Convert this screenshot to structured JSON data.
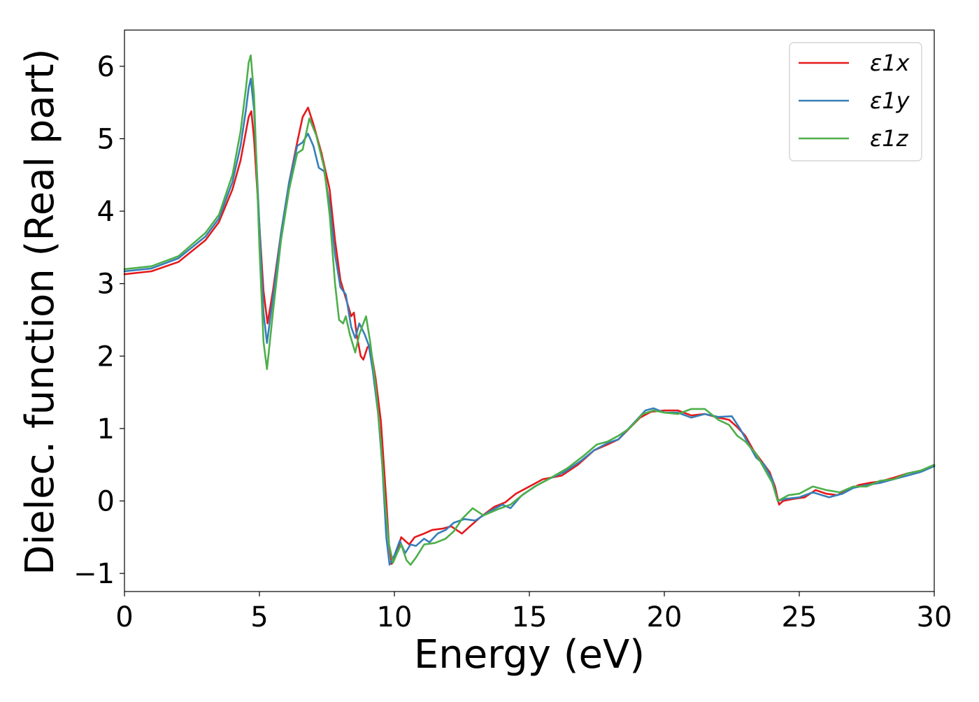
{
  "chart_data": {
    "type": "line",
    "xlabel": "Energy (eV)",
    "ylabel": "Dielec. function (Real part)",
    "xlim": [
      0,
      30
    ],
    "ylim": [
      -1.25,
      6.5
    ],
    "xticks": [
      0,
      5,
      10,
      15,
      20,
      25,
      30
    ],
    "yticks": [
      -1,
      0,
      1,
      2,
      3,
      4,
      5,
      6
    ],
    "ytick_labels": [
      "−1",
      "0",
      "1",
      "2",
      "3",
      "4",
      "5",
      "6"
    ],
    "grid": false,
    "legend_position": "top-right",
    "series": [
      {
        "name": "ε1x",
        "color": "#e41a1c",
        "points": [
          [
            0,
            3.13
          ],
          [
            1,
            3.17
          ],
          [
            2,
            3.3
          ],
          [
            3,
            3.6
          ],
          [
            3.5,
            3.85
          ],
          [
            4,
            4.3
          ],
          [
            4.3,
            4.7
          ],
          [
            4.5,
            5.1
          ],
          [
            4.6,
            5.3
          ],
          [
            4.7,
            5.38
          ],
          [
            4.8,
            5.0
          ],
          [
            5.0,
            3.8
          ],
          [
            5.15,
            2.9
          ],
          [
            5.3,
            2.45
          ],
          [
            5.5,
            2.9
          ],
          [
            5.8,
            3.7
          ],
          [
            6.1,
            4.4
          ],
          [
            6.4,
            4.95
          ],
          [
            6.6,
            5.3
          ],
          [
            6.8,
            5.43
          ],
          [
            7.0,
            5.2
          ],
          [
            7.3,
            4.8
          ],
          [
            7.6,
            4.3
          ],
          [
            7.8,
            3.6
          ],
          [
            8.0,
            3.05
          ],
          [
            8.2,
            2.8
          ],
          [
            8.4,
            2.55
          ],
          [
            8.5,
            2.6
          ],
          [
            8.6,
            2.3
          ],
          [
            8.75,
            2.0
          ],
          [
            8.85,
            1.95
          ],
          [
            9.0,
            2.12
          ],
          [
            9.1,
            2.15
          ],
          [
            9.3,
            1.7
          ],
          [
            9.5,
            1.1
          ],
          [
            9.7,
            0.0
          ],
          [
            9.8,
            -0.6
          ],
          [
            9.9,
            -0.87
          ],
          [
            10.1,
            -0.7
          ],
          [
            10.25,
            -0.5
          ],
          [
            10.4,
            -0.55
          ],
          [
            10.55,
            -0.6
          ],
          [
            10.75,
            -0.5
          ],
          [
            11.1,
            -0.45
          ],
          [
            11.4,
            -0.4
          ],
          [
            11.8,
            -0.38
          ],
          [
            12.1,
            -0.35
          ],
          [
            12.5,
            -0.45
          ],
          [
            12.8,
            -0.35
          ],
          [
            13.2,
            -0.22
          ],
          [
            13.7,
            -0.08
          ],
          [
            14.1,
            -0.02
          ],
          [
            14.5,
            0.1
          ],
          [
            15.0,
            0.2
          ],
          [
            15.5,
            0.3
          ],
          [
            16.2,
            0.35
          ],
          [
            16.8,
            0.5
          ],
          [
            17.4,
            0.7
          ],
          [
            17.9,
            0.78
          ],
          [
            18.3,
            0.85
          ],
          [
            18.7,
            1.0
          ],
          [
            19.1,
            1.15
          ],
          [
            19.5,
            1.23
          ],
          [
            20.0,
            1.25
          ],
          [
            20.5,
            1.25
          ],
          [
            21.0,
            1.18
          ],
          [
            21.5,
            1.2
          ],
          [
            22.0,
            1.15
          ],
          [
            22.4,
            1.12
          ],
          [
            22.7,
            1.02
          ],
          [
            23.0,
            0.9
          ],
          [
            23.3,
            0.7
          ],
          [
            23.6,
            0.55
          ],
          [
            23.9,
            0.4
          ],
          [
            24.1,
            0.2
          ],
          [
            24.25,
            -0.05
          ],
          [
            24.4,
            0.0
          ],
          [
            24.8,
            0.03
          ],
          [
            25.2,
            0.05
          ],
          [
            25.6,
            0.15
          ],
          [
            26.0,
            0.1
          ],
          [
            26.4,
            0.08
          ],
          [
            26.8,
            0.15
          ],
          [
            27.2,
            0.22
          ],
          [
            27.6,
            0.25
          ],
          [
            28.0,
            0.27
          ],
          [
            28.5,
            0.32
          ],
          [
            29.0,
            0.38
          ],
          [
            29.5,
            0.42
          ],
          [
            30.0,
            0.48
          ]
        ]
      },
      {
        "name": "ε1y",
        "color": "#377eb8",
        "points": [
          [
            0,
            3.17
          ],
          [
            1,
            3.21
          ],
          [
            2,
            3.35
          ],
          [
            3,
            3.65
          ],
          [
            3.5,
            3.9
          ],
          [
            4,
            4.4
          ],
          [
            4.3,
            4.9
          ],
          [
            4.5,
            5.4
          ],
          [
            4.6,
            5.7
          ],
          [
            4.68,
            5.83
          ],
          [
            4.8,
            5.4
          ],
          [
            5.0,
            3.8
          ],
          [
            5.15,
            2.6
          ],
          [
            5.28,
            2.18
          ],
          [
            5.5,
            2.8
          ],
          [
            5.8,
            3.7
          ],
          [
            6.1,
            4.4
          ],
          [
            6.4,
            4.9
          ],
          [
            6.6,
            4.95
          ],
          [
            6.8,
            5.07
          ],
          [
            7.0,
            4.9
          ],
          [
            7.2,
            4.6
          ],
          [
            7.4,
            4.55
          ],
          [
            7.6,
            4.1
          ],
          [
            7.8,
            3.4
          ],
          [
            8.0,
            2.95
          ],
          [
            8.2,
            2.85
          ],
          [
            8.4,
            2.4
          ],
          [
            8.55,
            2.25
          ],
          [
            8.7,
            2.45
          ],
          [
            8.9,
            2.3
          ],
          [
            9.05,
            2.15
          ],
          [
            9.2,
            1.8
          ],
          [
            9.4,
            1.2
          ],
          [
            9.55,
            0.5
          ],
          [
            9.7,
            -0.5
          ],
          [
            9.82,
            -0.88
          ],
          [
            10.0,
            -0.75
          ],
          [
            10.2,
            -0.55
          ],
          [
            10.4,
            -0.72
          ],
          [
            10.6,
            -0.6
          ],
          [
            10.8,
            -0.62
          ],
          [
            11.1,
            -0.52
          ],
          [
            11.3,
            -0.57
          ],
          [
            11.6,
            -0.45
          ],
          [
            11.9,
            -0.4
          ],
          [
            12.2,
            -0.3
          ],
          [
            12.6,
            -0.25
          ],
          [
            13.0,
            -0.27
          ],
          [
            13.5,
            -0.15
          ],
          [
            14.0,
            -0.05
          ],
          [
            14.3,
            -0.1
          ],
          [
            14.7,
            0.07
          ],
          [
            15.2,
            0.2
          ],
          [
            15.7,
            0.3
          ],
          [
            16.3,
            0.4
          ],
          [
            16.9,
            0.55
          ],
          [
            17.4,
            0.7
          ],
          [
            17.9,
            0.8
          ],
          [
            18.3,
            0.85
          ],
          [
            18.8,
            1.05
          ],
          [
            19.3,
            1.25
          ],
          [
            19.6,
            1.28
          ],
          [
            20.0,
            1.22
          ],
          [
            20.5,
            1.22
          ],
          [
            21.0,
            1.15
          ],
          [
            21.5,
            1.2
          ],
          [
            22.0,
            1.16
          ],
          [
            22.5,
            1.17
          ],
          [
            22.8,
            1.0
          ],
          [
            23.1,
            0.8
          ],
          [
            23.4,
            0.6
          ],
          [
            23.7,
            0.5
          ],
          [
            24.0,
            0.3
          ],
          [
            24.2,
            0.0
          ],
          [
            24.5,
            0.03
          ],
          [
            25.0,
            0.05
          ],
          [
            25.5,
            0.12
          ],
          [
            26.1,
            0.05
          ],
          [
            26.6,
            0.1
          ],
          [
            27.0,
            0.18
          ],
          [
            27.5,
            0.22
          ],
          [
            28.0,
            0.25
          ],
          [
            28.5,
            0.3
          ],
          [
            29.0,
            0.35
          ],
          [
            29.5,
            0.4
          ],
          [
            30.0,
            0.48
          ]
        ]
      },
      {
        "name": "ε1z",
        "color": "#4daf4a",
        "points": [
          [
            0,
            3.2
          ],
          [
            1,
            3.24
          ],
          [
            2,
            3.38
          ],
          [
            3,
            3.7
          ],
          [
            3.5,
            3.95
          ],
          [
            4,
            4.5
          ],
          [
            4.3,
            5.1
          ],
          [
            4.5,
            5.7
          ],
          [
            4.6,
            6.05
          ],
          [
            4.68,
            6.15
          ],
          [
            4.8,
            5.6
          ],
          [
            5.0,
            3.5
          ],
          [
            5.15,
            2.2
          ],
          [
            5.28,
            1.82
          ],
          [
            5.5,
            2.6
          ],
          [
            5.8,
            3.6
          ],
          [
            6.1,
            4.3
          ],
          [
            6.4,
            4.8
          ],
          [
            6.6,
            4.85
          ],
          [
            6.85,
            5.28
          ],
          [
            7.1,
            5.05
          ],
          [
            7.4,
            4.6
          ],
          [
            7.6,
            3.95
          ],
          [
            7.8,
            3.0
          ],
          [
            7.95,
            2.5
          ],
          [
            8.1,
            2.45
          ],
          [
            8.2,
            2.55
          ],
          [
            8.35,
            2.3
          ],
          [
            8.55,
            2.05
          ],
          [
            8.7,
            2.3
          ],
          [
            8.85,
            2.45
          ],
          [
            8.95,
            2.55
          ],
          [
            9.1,
            2.2
          ],
          [
            9.3,
            1.6
          ],
          [
            9.5,
            0.8
          ],
          [
            9.65,
            0.0
          ],
          [
            9.8,
            -0.6
          ],
          [
            9.95,
            -0.85
          ],
          [
            10.1,
            -0.72
          ],
          [
            10.25,
            -0.6
          ],
          [
            10.45,
            -0.82
          ],
          [
            10.6,
            -0.88
          ],
          [
            10.8,
            -0.78
          ],
          [
            11.1,
            -0.6
          ],
          [
            11.5,
            -0.58
          ],
          [
            11.9,
            -0.52
          ],
          [
            12.2,
            -0.42
          ],
          [
            12.5,
            -0.25
          ],
          [
            12.9,
            -0.1
          ],
          [
            13.3,
            -0.2
          ],
          [
            13.8,
            -0.12
          ],
          [
            14.3,
            -0.05
          ],
          [
            14.8,
            0.1
          ],
          [
            15.3,
            0.22
          ],
          [
            15.8,
            0.32
          ],
          [
            16.4,
            0.45
          ],
          [
            17.0,
            0.62
          ],
          [
            17.5,
            0.78
          ],
          [
            17.9,
            0.82
          ],
          [
            18.3,
            0.9
          ],
          [
            18.7,
            1.0
          ],
          [
            19.2,
            1.2
          ],
          [
            19.6,
            1.25
          ],
          [
            20.0,
            1.22
          ],
          [
            20.5,
            1.2
          ],
          [
            21.0,
            1.27
          ],
          [
            21.5,
            1.27
          ],
          [
            22.0,
            1.12
          ],
          [
            22.4,
            1.05
          ],
          [
            22.7,
            0.9
          ],
          [
            23.0,
            0.82
          ],
          [
            23.4,
            0.65
          ],
          [
            23.7,
            0.45
          ],
          [
            24.0,
            0.25
          ],
          [
            24.2,
            0.0
          ],
          [
            24.6,
            0.08
          ],
          [
            25.0,
            0.1
          ],
          [
            25.5,
            0.2
          ],
          [
            26.0,
            0.15
          ],
          [
            26.5,
            0.12
          ],
          [
            27.0,
            0.2
          ],
          [
            27.5,
            0.2
          ],
          [
            28.0,
            0.28
          ],
          [
            28.5,
            0.3
          ],
          [
            29.0,
            0.38
          ],
          [
            29.5,
            0.42
          ],
          [
            30.0,
            0.5
          ]
        ]
      }
    ]
  }
}
